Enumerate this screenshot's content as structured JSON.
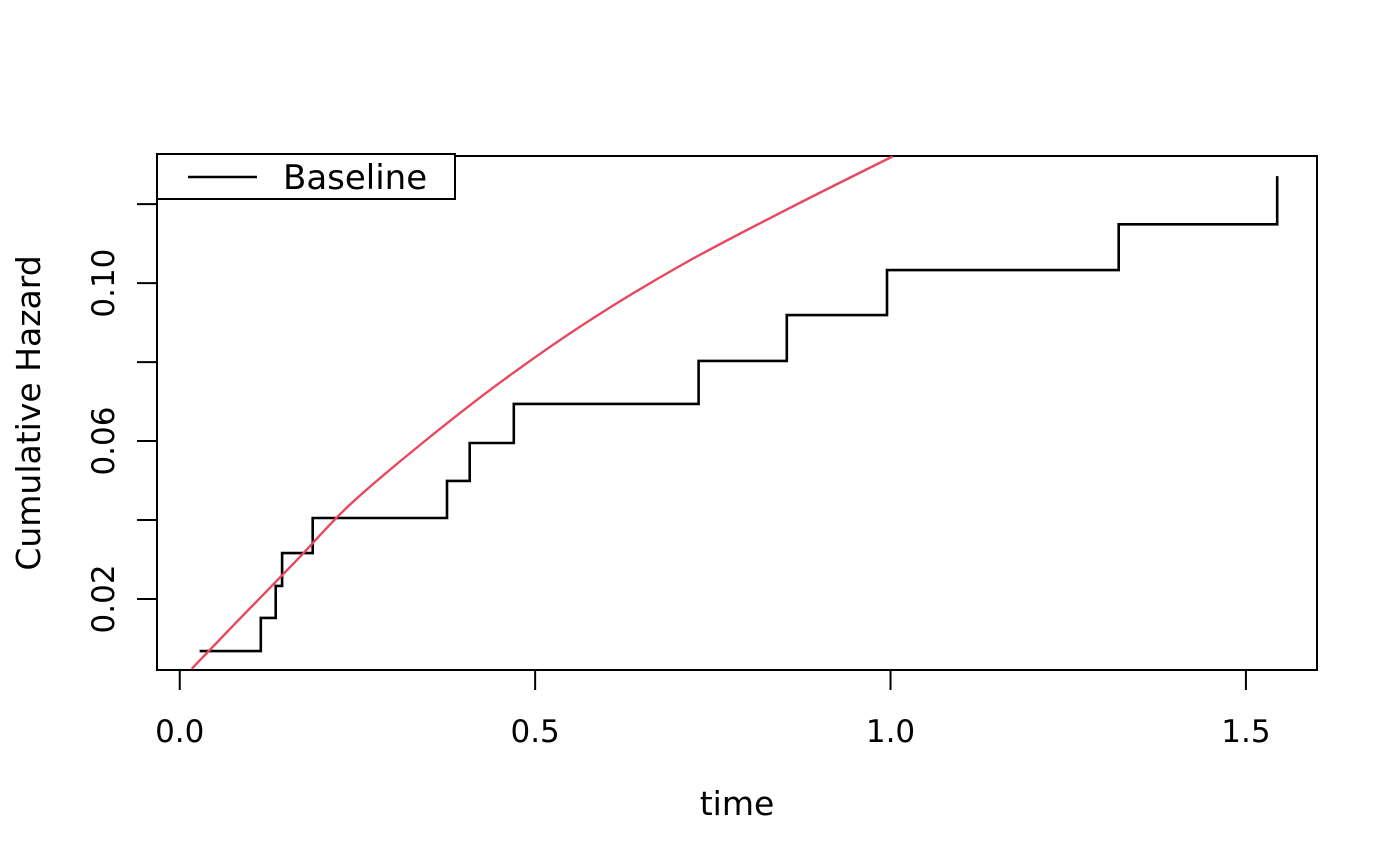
{
  "figure": {
    "background": "#ffffff",
    "frame_color": "#000000"
  },
  "chart_data": {
    "type": "line",
    "title": "",
    "xlabel": "time",
    "ylabel": "Cumulative Hazard",
    "xlim": [
      -0.032,
      1.6
    ],
    "ylim": [
      0.002,
      0.1322
    ],
    "grid": false,
    "x_ticks": {
      "values": [
        0.0,
        0.5,
        1.0,
        1.5
      ],
      "labels": [
        "0.0",
        "0.5",
        "1.0",
        "1.5"
      ]
    },
    "y_ticks": {
      "values": [
        0.02,
        0.04,
        0.06,
        0.08,
        0.1,
        0.12
      ],
      "labels": [
        "0.02",
        "",
        "0.06",
        "",
        "0.10",
        ""
      ]
    },
    "legend": {
      "position": "topleft",
      "entries": [
        {
          "label": "Baseline",
          "line_color": "#000000"
        }
      ]
    },
    "series": [
      {
        "name": "baseline-cumulative-hazard-step",
        "type": "step",
        "color": "#000000",
        "times": [
          0.028,
          0.114,
          0.135,
          0.144,
          0.187,
          0.376,
          0.408,
          0.47,
          0.73,
          0.854,
          0.995,
          1.321,
          1.544
        ],
        "values": [
          0.0068,
          0.0152,
          0.0233,
          0.0316,
          0.0405,
          0.0499,
          0.0595,
          0.0694,
          0.0803,
          0.0919,
          0.1033,
          0.1149,
          0.1271
        ]
      },
      {
        "name": "fitted-cumulative-hazard-curve",
        "type": "smooth",
        "color": "#E8485D",
        "points": [
          [
            0.017,
            0.0023
          ],
          [
            0.084,
            0.0149
          ],
          [
            0.165,
            0.0299
          ],
          [
            0.239,
            0.0438
          ],
          [
            0.338,
            0.059
          ],
          [
            0.455,
            0.0754
          ],
          [
            0.577,
            0.0906
          ],
          [
            0.711,
            0.1051
          ],
          [
            0.858,
            0.119
          ],
          [
            1.003,
            0.1321
          ]
        ]
      }
    ]
  }
}
